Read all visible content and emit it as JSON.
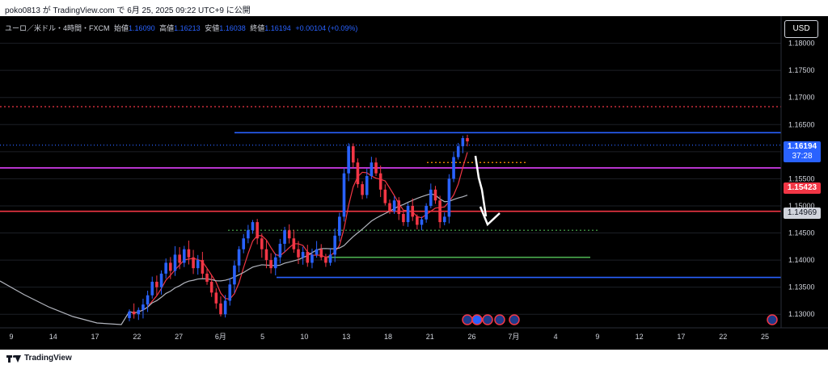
{
  "header": {
    "publish_line": "poko0813 が TradingView.com で 6月 25, 2025 09:22 UTC+9 に公開"
  },
  "legend": {
    "symbol": "ユーロ／米ドル・4時間・FXCM",
    "open_label": "始値",
    "open_value": "1.16090",
    "high_label": "高値",
    "high_value": "1.16213",
    "low_label": "安値",
    "low_value": "1.16038",
    "close_label": "終値",
    "close_value": "1.16194",
    "change": "+0.00104 (+0.09%)"
  },
  "currency_button": "USD",
  "price_scale": {
    "ticks": [
      "1.18000",
      "1.17500",
      "1.17000",
      "1.16500",
      "1.16000",
      "1.15500",
      "1.15000",
      "1.14500",
      "1.14000",
      "1.13500",
      "1.13000"
    ],
    "current_price": {
      "value": "1.16194",
      "countdown": "37:28",
      "color": "#2962ff"
    },
    "red_marker": {
      "value": "1.15423",
      "color": "#f23645"
    },
    "gray_marker": {
      "value": "1.14969",
      "color": "#b2b5be"
    }
  },
  "time_axis": {
    "labels": [
      "9",
      "14",
      "17",
      "22",
      "27",
      "6月",
      "5",
      "10",
      "13",
      "18",
      "21",
      "26",
      "7月",
      "4",
      "9",
      "12",
      "17",
      "22",
      "25"
    ]
  },
  "footer": {
    "brand": "TradingView"
  },
  "colors": {
    "background": "#000000",
    "up_candle": "#2962ff",
    "down_candle": "#f23645",
    "ma_fast": "#f23645",
    "ma_slow": "#b2b5be",
    "blue_line": "#2962ff",
    "magenta_line": "#e040fb",
    "red_line": "#f23645",
    "green_line": "#4caf50",
    "orange_dotted": "#ff9800",
    "red_dotted": "#f23645",
    "green_dotted": "#4caf50"
  },
  "chart_data": {
    "type": "candlestick",
    "symbol": "ユーロ／米ドル・4時間・FXCM",
    "ylim": [
      1.1275,
      1.185
    ],
    "horizontal_levels": [
      {
        "price": 1.1683,
        "style": "dotted",
        "color": "#f23645"
      },
      {
        "price": 1.1635,
        "style": "solid",
        "color": "#2962ff"
      },
      {
        "price": 1.1612,
        "style": "dotted-thin",
        "color": "#2962ff"
      },
      {
        "price": 1.157,
        "style": "solid",
        "color": "#e040fb"
      },
      {
        "price": 1.149,
        "style": "solid",
        "color": "#f23645"
      },
      {
        "price": 1.1455,
        "style": "dotted",
        "color": "#4caf50"
      },
      {
        "price": 1.1405,
        "style": "solid",
        "color": "#4caf50"
      },
      {
        "price": 1.1368,
        "style": "solid",
        "color": "#2962ff"
      },
      {
        "price": 1.158,
        "style": "dotted",
        "color": "#ff9800"
      }
    ],
    "ohlc_close_path": [
      1.1305,
      1.13,
      1.1308,
      1.1318,
      1.1335,
      1.136,
      1.135,
      1.1375,
      1.1395,
      1.138,
      1.141,
      1.1395,
      1.142,
      1.1405,
      1.1385,
      1.14,
      1.1375,
      1.136,
      1.134,
      1.132,
      1.13,
      1.1325,
      1.1355,
      1.139,
      1.142,
      1.144,
      1.1455,
      1.147,
      1.144,
      1.142,
      1.14,
      1.1385,
      1.1405,
      1.143,
      1.1455,
      1.144,
      1.142,
      1.1405,
      1.1415,
      1.1395,
      1.141,
      1.142,
      1.1405,
      1.1395,
      1.141,
      1.1445,
      1.148,
      1.156,
      1.161,
      1.158,
      1.154,
      1.152,
      1.1555,
      1.158,
      1.156,
      1.153,
      1.1505,
      1.149,
      1.151,
      1.1485,
      1.147,
      1.15,
      1.148,
      1.1465,
      1.1475,
      1.15,
      1.153,
      1.151,
      1.147,
      1.148,
      1.155,
      1.159,
      1.161,
      1.1625,
      1.1619
    ]
  }
}
